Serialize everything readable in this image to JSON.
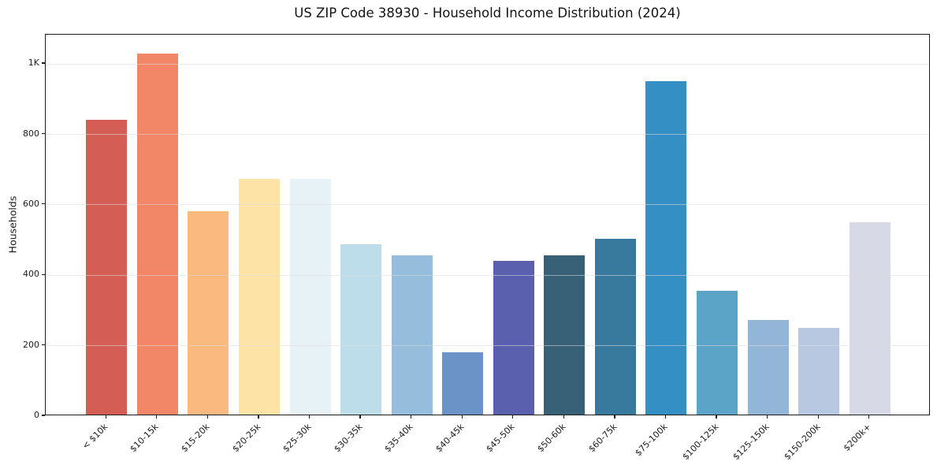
{
  "chart_data": {
    "type": "bar",
    "title": "US ZIP Code 38930 - Household Income Distribution (2024)",
    "xlabel": "",
    "ylabel": "Households",
    "categories": [
      "< $10k",
      "$10-15k",
      "$15-20k",
      "$20-25k",
      "$25-30k",
      "$30-35k",
      "$35-40k",
      "$40-45k",
      "$45-50k",
      "$50-60k",
      "$60-75k",
      "$75-100k",
      "$100-125k",
      "$125-150k",
      "$150-200k",
      "$200k+"
    ],
    "values": [
      838,
      1026,
      577,
      670,
      670,
      483,
      452,
      177,
      437,
      452,
      500,
      947,
      352,
      269,
      247,
      545
    ],
    "bar_colors": [
      "#d45d56",
      "#f28768",
      "#fab97e",
      "#fde3a5",
      "#e6f2f6",
      "#bcdde9",
      "#96bedc",
      "#6b93c7",
      "#5a60ae",
      "#386076",
      "#377a9e",
      "#348fc4",
      "#5ba4c8",
      "#93b6d8",
      "#b8c8e0",
      "#d8d9e7"
    ],
    "ylim": [
      0,
      1083
    ],
    "yticks": [
      {
        "value": 0,
        "label": "0"
      },
      {
        "value": 200,
        "label": "200"
      },
      {
        "value": 400,
        "label": "400"
      },
      {
        "value": 600,
        "label": "600"
      },
      {
        "value": 800,
        "label": "800"
      },
      {
        "value": 1000,
        "label": "1K"
      }
    ],
    "grid": true,
    "legend": false,
    "x_tick_rotation_deg": 45,
    "styles": {
      "grid_color": "#e9e9e9",
      "spine_color": "#1c1c1c",
      "text_color": "#1c1c1c",
      "background": "#ffffff"
    }
  }
}
